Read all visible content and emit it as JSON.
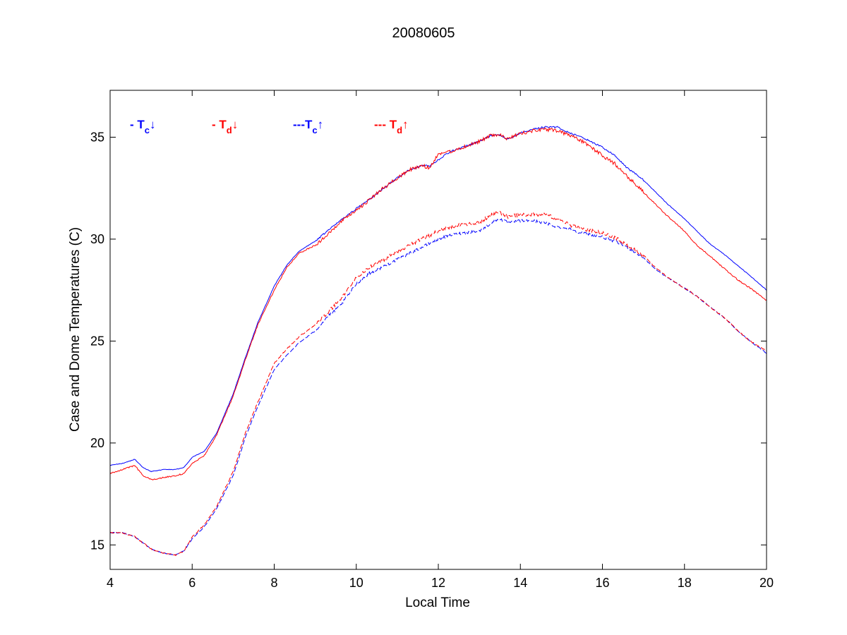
{
  "chart_data": {
    "type": "line",
    "title": "20080605",
    "xlabel": "Local Time",
    "ylabel": "Case and Dome Temperatures (C)",
    "xlim": [
      4,
      20
    ],
    "ylim": [
      13.8,
      37.3
    ],
    "xticks": [
      4,
      6,
      8,
      10,
      12,
      14,
      16,
      18,
      20
    ],
    "yticks": [
      15,
      20,
      25,
      30,
      35
    ],
    "grid": false,
    "legend_position": "top-left",
    "legend": [
      {
        "series": "tc_down",
        "prefix": "- T",
        "sub": "c",
        "arrow": "↓",
        "color": "#0000ff"
      },
      {
        "series": "td_down",
        "prefix": "- T",
        "sub": "d",
        "arrow": "↓",
        "color": "#ff0000"
      },
      {
        "series": "tc_up",
        "prefix": "---T",
        "sub": "c",
        "arrow": "↑",
        "color": "#0000ff"
      },
      {
        "series": "td_up",
        "prefix": "--- T",
        "sub": "d",
        "arrow": "↑",
        "color": "#ff0000"
      }
    ],
    "series": [
      {
        "id": "tc_down",
        "color": "#0000ff",
        "dash": "solid",
        "noise": 0.04,
        "x": [
          4.0,
          4.3,
          4.6,
          4.8,
          5.0,
          5.3,
          5.6,
          5.8,
          6.0,
          6.3,
          6.6,
          7.0,
          7.3,
          7.6,
          8.0,
          8.3,
          8.6,
          9.0,
          9.3,
          9.6,
          10.0,
          10.3,
          10.6,
          11.0,
          11.3,
          11.6,
          11.8,
          12.0,
          12.3,
          12.6,
          13.0,
          13.3,
          13.5,
          13.7,
          14.0,
          14.3,
          14.6,
          14.9,
          15.2,
          15.5,
          15.8,
          16.0,
          16.3,
          16.6,
          17.0,
          17.3,
          17.6,
          18.0,
          18.3,
          18.6,
          19.0,
          19.3,
          19.6,
          20.0
        ],
        "y": [
          18.9,
          19.0,
          19.2,
          18.8,
          18.6,
          18.7,
          18.7,
          18.8,
          19.3,
          19.6,
          20.5,
          22.4,
          24.2,
          25.9,
          27.7,
          28.7,
          29.4,
          29.9,
          30.4,
          30.9,
          31.5,
          31.9,
          32.4,
          33.0,
          33.4,
          33.6,
          33.6,
          33.9,
          34.3,
          34.5,
          34.8,
          35.1,
          35.1,
          34.9,
          35.2,
          35.4,
          35.5,
          35.5,
          35.2,
          35.0,
          34.7,
          34.5,
          34.1,
          33.5,
          32.9,
          32.3,
          31.7,
          31.0,
          30.4,
          29.8,
          29.2,
          28.7,
          28.2,
          27.5
        ]
      },
      {
        "id": "td_down",
        "color": "#ff0000",
        "dash": "solid",
        "noise": 0.09,
        "x": [
          4.0,
          4.3,
          4.6,
          4.8,
          5.0,
          5.3,
          5.6,
          5.8,
          6.0,
          6.3,
          6.6,
          7.0,
          7.3,
          7.6,
          8.0,
          8.3,
          8.6,
          9.0,
          9.3,
          9.6,
          10.0,
          10.3,
          10.6,
          11.0,
          11.3,
          11.6,
          11.8,
          12.0,
          12.3,
          12.6,
          13.0,
          13.3,
          13.5,
          13.7,
          14.0,
          14.3,
          14.6,
          14.9,
          15.2,
          15.5,
          15.8,
          16.0,
          16.3,
          16.6,
          17.0,
          17.3,
          17.6,
          18.0,
          18.3,
          18.6,
          19.0,
          19.3,
          19.6,
          20.0
        ],
        "y": [
          18.5,
          18.7,
          18.9,
          18.4,
          18.2,
          18.3,
          18.4,
          18.5,
          19.0,
          19.4,
          20.4,
          22.3,
          24.1,
          25.8,
          27.5,
          28.6,
          29.3,
          29.7,
          30.2,
          30.8,
          31.4,
          31.9,
          32.4,
          33.0,
          33.4,
          33.6,
          33.5,
          34.2,
          34.3,
          34.5,
          34.8,
          35.1,
          35.1,
          34.9,
          35.2,
          35.3,
          35.4,
          35.3,
          35.1,
          34.8,
          34.4,
          34.1,
          33.7,
          33.1,
          32.3,
          31.7,
          31.1,
          30.4,
          29.7,
          29.2,
          28.5,
          28.0,
          27.6,
          27.0
        ]
      },
      {
        "id": "tc_up",
        "color": "#0000ff",
        "dash": "dashed",
        "noise": 0.07,
        "x": [
          4.0,
          4.3,
          4.6,
          4.8,
          5.0,
          5.3,
          5.6,
          5.8,
          6.0,
          6.3,
          6.6,
          7.0,
          7.3,
          7.6,
          8.0,
          8.3,
          8.6,
          9.0,
          9.3,
          9.6,
          10.0,
          10.3,
          10.6,
          11.0,
          11.3,
          11.6,
          11.8,
          12.0,
          12.3,
          12.6,
          13.0,
          13.3,
          13.5,
          13.7,
          14.0,
          14.3,
          14.6,
          14.9,
          15.2,
          15.5,
          15.8,
          16.0,
          16.3,
          16.6,
          17.0,
          17.3,
          17.6,
          18.0,
          18.3,
          18.6,
          19.0,
          19.3,
          19.6,
          20.0
        ],
        "y": [
          15.6,
          15.6,
          15.4,
          15.1,
          14.8,
          14.6,
          14.5,
          14.7,
          15.3,
          15.9,
          16.8,
          18.4,
          20.3,
          21.8,
          23.6,
          24.3,
          24.9,
          25.5,
          26.2,
          26.7,
          27.8,
          28.3,
          28.6,
          29.0,
          29.3,
          29.6,
          29.8,
          30.0,
          30.2,
          30.3,
          30.4,
          30.8,
          31.0,
          30.8,
          30.9,
          30.9,
          30.8,
          30.6,
          30.5,
          30.3,
          30.2,
          30.1,
          29.9,
          29.6,
          29.1,
          28.5,
          28.1,
          27.6,
          27.2,
          26.7,
          26.1,
          25.5,
          25.0,
          24.4
        ]
      },
      {
        "id": "td_up",
        "color": "#ff0000",
        "dash": "dashed",
        "noise": 0.09,
        "x": [
          4.0,
          4.3,
          4.6,
          4.8,
          5.0,
          5.3,
          5.6,
          5.8,
          6.0,
          6.3,
          6.6,
          7.0,
          7.3,
          7.6,
          8.0,
          8.3,
          8.6,
          9.0,
          9.3,
          9.6,
          10.0,
          10.3,
          10.6,
          11.0,
          11.3,
          11.6,
          11.8,
          12.0,
          12.3,
          12.6,
          13.0,
          13.3,
          13.5,
          13.7,
          14.0,
          14.3,
          14.6,
          14.9,
          15.2,
          15.5,
          15.8,
          16.0,
          16.3,
          16.6,
          17.0,
          17.3,
          17.6,
          18.0,
          18.3,
          18.6,
          19.0,
          19.3,
          19.6,
          20.0
        ],
        "y": [
          15.6,
          15.6,
          15.4,
          15.1,
          14.8,
          14.6,
          14.5,
          14.7,
          15.4,
          16.0,
          16.9,
          18.6,
          20.5,
          22.0,
          23.9,
          24.6,
          25.2,
          25.8,
          26.4,
          27.0,
          28.1,
          28.6,
          28.9,
          29.4,
          29.7,
          30.0,
          30.2,
          30.4,
          30.6,
          30.7,
          30.8,
          31.2,
          31.3,
          31.1,
          31.2,
          31.2,
          31.2,
          31.0,
          30.7,
          30.5,
          30.4,
          30.3,
          30.1,
          29.7,
          29.2,
          28.6,
          28.1,
          27.6,
          27.2,
          26.7,
          26.1,
          25.5,
          25.0,
          24.5
        ]
      }
    ]
  }
}
